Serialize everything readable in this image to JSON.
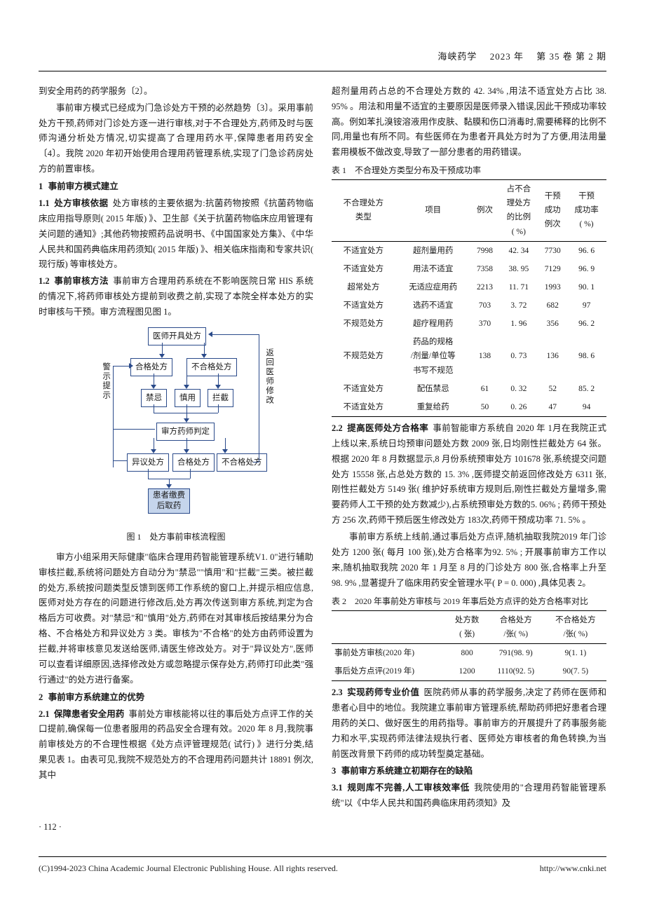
{
  "header": {
    "journal": "海峡药学",
    "year": "2023 年",
    "vol": "第 35 卷 第 2 期"
  },
  "leftCol": {
    "p0": "到安全用药的药学服务〔2〕。",
    "p1": "事前审方模式已经成为门急诊处方干预的必然趋势〔3〕。采用事前处方干预,药师对门诊处方逐一进行审核,对于不合理处方,药师及时与医师沟通分析处方情况,切实提高了合理用药水平,保障患者用药安全〔4〕。我院 2020 年初开始使用合理用药管理系统,实现了门急诊药房处方的前置审核。",
    "s1": {
      "num": "1",
      "title": "事前审方模式建立"
    },
    "s11": {
      "num": "1.1",
      "title": "处方审核依据",
      "body": "处方审核的主要依据为:抗菌药物按照《抗菌药物临床应用指导原则( 2015 年版) 》、卫生部《关于抗菌药物临床应用管理有关问题的通知》;其他药物按照药品说明书、《中国国家处方集》、《中华人民共和国药典临床用药须知( 2015 年版) 》、相关临床指南和专家共识( 现行版) 等审核处方。"
    },
    "s12": {
      "num": "1.2",
      "title": "事前审核方法",
      "body": "事前审方合理用药系统在不影响医院日常 HIS 系统的情况下,将药师审核处方提前到收费之前,实现了本院全样本处方的实时审核与干预。审方流程图见图 1。"
    },
    "flow": {
      "n1": "医师开具处方",
      "n2a": "合格处方",
      "n2b": "不合格处方",
      "n3a": "禁忌",
      "n3b": "慎用",
      "n3c": "拦截",
      "n4": "审方药师判定",
      "n5a": "异议处方",
      "n5b": "合格处方",
      "n5c": "不合格处方",
      "n6": "患者缴费\n后取药",
      "vleft": "警示提示",
      "vright": "返回医师修改"
    },
    "figcap": "图 1　处方事前审核流程图",
    "p2": "审方小组采用天际健康\"临床合理用药智能管理系统V1. 0\"进行辅助审核拦截,系统将问题处方自动分为\"禁忌\"\"慎用\"和\"拦截\"三类。被拦截的处方,系统按问题类型反馈到医师工作系统的窗口上,并提示相应信息,医师对处方存在的问题进行修改后,处方再次传送到审方系统,判定为合格后方可收费。对\"禁忌\"和\"慎用\"处方,药师在对其审核后按结果分为合格、不合格处方和异议处方 3 类。审核为\"不合格\"的处方由药师设置为拦截,并将审核意见发送给医师,请医生修改处方。对于\"异议处方\",医师可以查看详细原因,选择修改处方或忽略提示保存处方,药师打印此类\"强行通过\"的处方进行备案。",
    "s2": {
      "num": "2",
      "title": "事前审方系统建立的优势"
    },
    "s21": {
      "num": "2.1",
      "title": "保障患者安全用药",
      "body": "事前处方审核能将以往的事后处方点评工作的关口提前,确保每一位患者服用的药品安全合理有效。2020 年 8 月,我院事前审核处方的不合理性根据《处方点评管理规范( 试行) 》进行分类,结果见表 1。由表可见,我院不规范处方的不合理用药问题共计 18891 例次,其中"
    }
  },
  "rightCol": {
    "p0": "超剂量用药占总的不合理处方数的 42. 34% ,用法不适宜处方占比 38. 95% 。用法和用量不适宜的主要原因是医师录入错误,因此干预成功率较高。例如苯扎溴铵溶液用作皮肤、黏膜和伤口消毒时,需要稀释的比例不同,用量也有所不同。有些医师在为患者开具处方时为了方便,用法用量套用模板不做改变,导致了一部分患者的用药错误。",
    "t1cap": "表 1　不合理处方类型分布及干预成功率",
    "t1": {
      "head": [
        "不合理处方\n类型",
        "项目",
        "例次",
        "占不合\n理处方\n的比例\n( %)",
        "干预\n成功\n例次",
        "干预\n成功率\n( %)"
      ],
      "rows": [
        [
          "不适宜处方",
          "超剂量用药",
          "7998",
          "42. 34",
          "7730",
          "96. 6"
        ],
        [
          "不适宜处方",
          "用法不适宜",
          "7358",
          "38. 95",
          "7129",
          "96. 9"
        ],
        [
          "超常处方",
          "无适应症用药",
          "2213",
          "11. 71",
          "1993",
          "90. 1"
        ],
        [
          "不适宜处方",
          "选药不适宜",
          "703",
          "3. 72",
          "682",
          "97"
        ],
        [
          "不规范处方",
          "超疗程用药",
          "370",
          "1. 96",
          "356",
          "96. 2"
        ],
        [
          "不规范处方",
          "药品的规格\n/剂量/单位等\n书写不规范",
          "138",
          "0. 73",
          "136",
          "98. 6"
        ],
        [
          "不适宜处方",
          "配伍禁忌",
          "61",
          "0. 32",
          "52",
          "85. 2"
        ],
        [
          "不适宜处方",
          "重复给药",
          "50",
          "0. 26",
          "47",
          "94"
        ]
      ]
    },
    "s22": {
      "num": "2.2",
      "title": "提高医师处方合格率",
      "body": "事前智能审方系统自 2020 年 1月在我院正式上线以来,系统日均预审问题处方数 2009 张,日均刚性拦截处方 64 张。根据 2020 年 8 月数据显示,8 月份系统预审处方 101678 张,系统提交问题处方 15558 张,占总处方数的 15. 3% ,医师提交前返回修改处方 6311 张,刚性拦截处方 5149 张( 维护好系统审方规则后,刚性拦截处方量增多,需要药师人工干预的处方数减少),占系统预审处方数的5. 06% ; 药师干预处方 256 次,药师干预后医生修改处方 183次,药师干预成功率 71. 5% 。"
    },
    "p22b": "事前审方系统上线前,通过事后处方点评,随机抽取我院2019 年门诊处方 1200 张( 每月 100 张),处方合格率为92. 5% ; 开展事前审方工作以来,随机抽取我院 2020 年 1 月至 8 月的门诊处方 800 张,合格率上升至 98. 9% ,显著提升了临床用药安全管理水平( P = 0. 000) ,具体见表 2。",
    "t2cap": "表 2　2020 年事前处方审核与 2019 年事后处方点评的处方合格率对比",
    "t2": {
      "head": [
        "",
        "处方数\n( 张)",
        "合格处方\n/张( %)",
        "不合格处方\n/张( %)"
      ],
      "rows": [
        [
          "事前处方审核(2020 年)",
          "800",
          "791(98. 9)",
          "9(1. 1)"
        ],
        [
          "事后处方点评(2019 年)",
          "1200",
          "1110(92. 5)",
          "90(7. 5)"
        ]
      ]
    },
    "s23": {
      "num": "2.3",
      "title": "实现药师专业价值",
      "body": "医院药师从事的药学服务,决定了药师在医师和患者心目中的地位。我院建立事前审方管理系统,帮助药师把好患者合理用药的关口、做好医生的用药指导。事前审方的开展提升了药事服务能力和水平,实现药师法律法规执行者、医师处方审核者的角色转换,为当前医改背景下药师的成功转型奠定基础。"
    },
    "s3": {
      "num": "3",
      "title": "事前审方系统建立初期存在的缺陷"
    },
    "s31": {
      "num": "3.1",
      "title": "规则库不完善,人工审核效率低",
      "body": "我院使用的\"合理用药智能管理系统\"以《中华人民共和国药典临床用药须知》及"
    }
  },
  "pagenum": "· 112 ·",
  "footer": {
    "left": "(C)1994-2023 China Academic Journal Electronic Publishing House. All rights reserved.",
    "right": "http://www.cnki.net"
  }
}
